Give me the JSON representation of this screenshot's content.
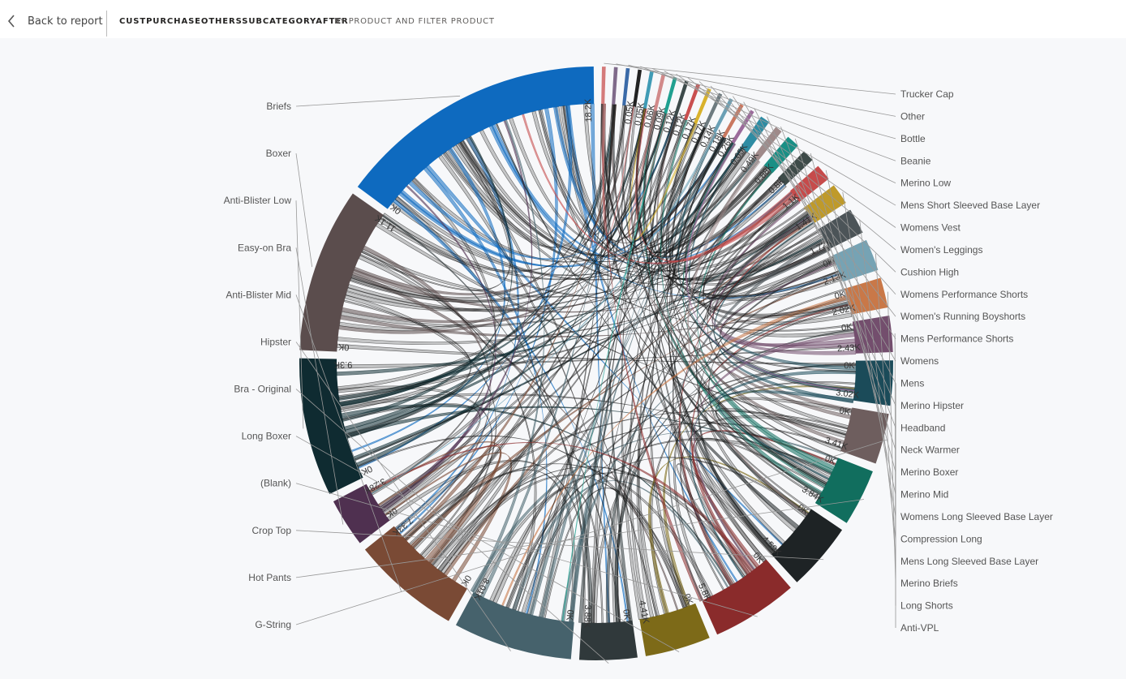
{
  "header": {
    "back_label": "Back to report",
    "title": "CUSTPURCHASEOTHERSSUBCATEGORYAFTER",
    "subtitle": "BY PRODUCT AND FILTER PRODUCT"
  },
  "chart_data": {
    "type": "chord",
    "title": "",
    "left_labels": [
      "Briefs",
      "Boxer",
      "Anti-Blister Low",
      "Easy-on Bra",
      "Anti-Blister Mid",
      "Hipster",
      "Bra - Original",
      "Long Boxer",
      "(Blank)",
      "Crop Top",
      "Hot Pants",
      "G-String"
    ],
    "right_labels": [
      "Trucker Cap",
      "Other",
      "Bottle",
      "Beanie",
      "Merino Low",
      "Mens Short Sleeved Base Layer",
      "Womens Vest",
      "Women's Leggings",
      "Cushion High",
      "Womens Performance Shorts",
      "Women's Running Boyshorts",
      "Mens Performance Shorts",
      "Womens",
      "Mens",
      "Merino Hipster",
      "Headband",
      "Neck Warmer",
      "Merino Boxer",
      "Merino Mid",
      "Womens Long Sleeved Base Layer",
      "Compression Long",
      "Mens Long Sleeved Base Layer",
      "Merino Briefs",
      "Long Shorts",
      "Anti-VPL"
    ],
    "segments": [
      {
        "name": "Briefs",
        "value": 18.2,
        "color": "#0e6abf",
        "max_label": "18.2K",
        "zero_label": "0K"
      },
      {
        "name": "Boxer",
        "value": 11.1,
        "color": "#5b4d4d",
        "max_label": "11.1K",
        "zero_label": "0K"
      },
      {
        "name": "Anti-Blister Low",
        "value": 9.3,
        "color": "#0f2b31",
        "max_label": "9.3K",
        "zero_label": "0K"
      },
      {
        "name": "Easy-on Bra",
        "value": 3.28,
        "color": "#4f3050",
        "max_label": "3.28K",
        "zero_label": "0K"
      },
      {
        "name": "Anti-Blister Mid",
        "value": 7.33,
        "color": "#7a4a35",
        "max_label": "7.33K",
        "zero_label": "0K"
      },
      {
        "name": "Hipster",
        "value": 8.01,
        "color": "#46626c",
        "max_label": "8.01K",
        "zero_label": "0K"
      },
      {
        "name": "Bra - Original",
        "value": 3.88,
        "color": "#30393b",
        "max_label": "3.88K",
        "zero_label": "0K"
      },
      {
        "name": "Long Boxer",
        "value": 4.41,
        "color": "#7d6a18",
        "max_label": "4.41K",
        "zero_label": "0K"
      },
      {
        "name": "(Blank)",
        "value": 5.8,
        "color": "#8a2b2b",
        "max_label": "5.8K",
        "zero_label": "0K"
      },
      {
        "name": "Crop Top",
        "value": 4.59,
        "color": "#1e2325",
        "max_label": "4.59K",
        "zero_label": "0K"
      },
      {
        "name": "Hot Pants",
        "value": 3.84,
        "color": "#116e5e",
        "max_label": "3.84K",
        "zero_label": "0K"
      },
      {
        "name": "G-String",
        "value": 3.41,
        "color": "#6e5e5e",
        "max_label": "3.41K",
        "zero_label": "0K"
      },
      {
        "name": "Anti-VPL",
        "value": 3.02,
        "color": "#1b4b59",
        "max_label": "3.02K",
        "zero_label": "0K"
      },
      {
        "name": "Long Shorts",
        "value": 2.43,
        "color": "#734e6d",
        "max_label": "2.43K",
        "zero_label": "0K"
      },
      {
        "name": "Merino Briefs",
        "value": 2.02,
        "color": "#c97848",
        "max_label": "2.02K",
        "zero_label": "0K"
      },
      {
        "name": "Mens Long Sleeved Base Layer",
        "value": 2.13,
        "color": "#76a3b4",
        "max_label": "2.13K",
        "zero_label": "0K"
      },
      {
        "name": "Compression Long",
        "value": 1.72,
        "color": "#4c5458",
        "max_label": "1.72K",
        "zero_label": ""
      },
      {
        "name": "Womens Long Sleeved Base Layer",
        "value": 1.41,
        "color": "#bf9a2a",
        "max_label": "1.41K",
        "zero_label": ""
      },
      {
        "name": "Merino Mid",
        "value": 1.1,
        "color": "#c64b4b",
        "max_label": "1.1K",
        "zero_label": ""
      },
      {
        "name": "Merino Boxer",
        "value": 0.8,
        "color": "#3e4b49",
        "max_label": "0.8K",
        "zero_label": ""
      },
      {
        "name": "Neck Warmer",
        "value": 0.88,
        "color": "#1a8f85",
        "max_label": "0.88K",
        "zero_label": ""
      },
      {
        "name": "Headband",
        "value": 0.49,
        "color": "#9f8a8a",
        "max_label": "0.49K",
        "zero_label": ""
      },
      {
        "name": "Merino Hipster",
        "value": 0.65,
        "color": "#2e8ca3",
        "max_label": "0.65K",
        "zero_label": ""
      },
      {
        "name": "Mens",
        "value": 0.26,
        "color": "#9b6b9b",
        "max_label": "0.26K",
        "zero_label": ""
      },
      {
        "name": "Womens",
        "value": 0.18,
        "color": "#c97860",
        "max_label": "0.18K",
        "zero_label": ""
      },
      {
        "name": "Mens Performance Shorts",
        "value": 0.14,
        "color": "#6aa0b5",
        "max_label": "0.14K",
        "zero_label": ""
      },
      {
        "name": "Women's Running Boyshorts",
        "value": 0.17,
        "color": "#6e7b80",
        "max_label": "0.17K",
        "zero_label": ""
      },
      {
        "name": "Womens Performance Shorts",
        "value": 0.17,
        "color": "#d9b22c",
        "max_label": "0.17K",
        "zero_label": ""
      },
      {
        "name": "Cushion High",
        "value": 0.12,
        "color": "#c94f4f",
        "max_label": "0.12K",
        "zero_label": ""
      },
      {
        "name": "Women's Leggings",
        "value": 0.12,
        "color": "#3c4a4a",
        "max_label": "0.12K",
        "zero_label": ""
      },
      {
        "name": "Womens Vest",
        "value": 0.09,
        "color": "#20a090",
        "max_label": "0.09K",
        "zero_label": ""
      },
      {
        "name": "Mens Short Sleeved Base Layer",
        "value": 0.06,
        "color": "#d28a8a",
        "max_label": "0.06K",
        "zero_label": ""
      },
      {
        "name": "Merino Low",
        "value": 0.05,
        "color": "#3f9bb5",
        "max_label": "0.05K",
        "zero_label": ""
      },
      {
        "name": "Beanie",
        "value": 0.05,
        "color": "#222222",
        "max_label": "0.05K",
        "zero_label": ""
      },
      {
        "name": "Bottle",
        "value": 0.03,
        "color": "#3a6aa8",
        "max_label": "",
        "zero_label": ""
      },
      {
        "name": "Other",
        "value": 0.03,
        "color": "#7f6a8a",
        "max_label": "",
        "zero_label": ""
      },
      {
        "name": "Trucker Cap",
        "value": 0.03,
        "color": "#d47a7a",
        "max_label": "",
        "zero_label": ""
      }
    ]
  }
}
